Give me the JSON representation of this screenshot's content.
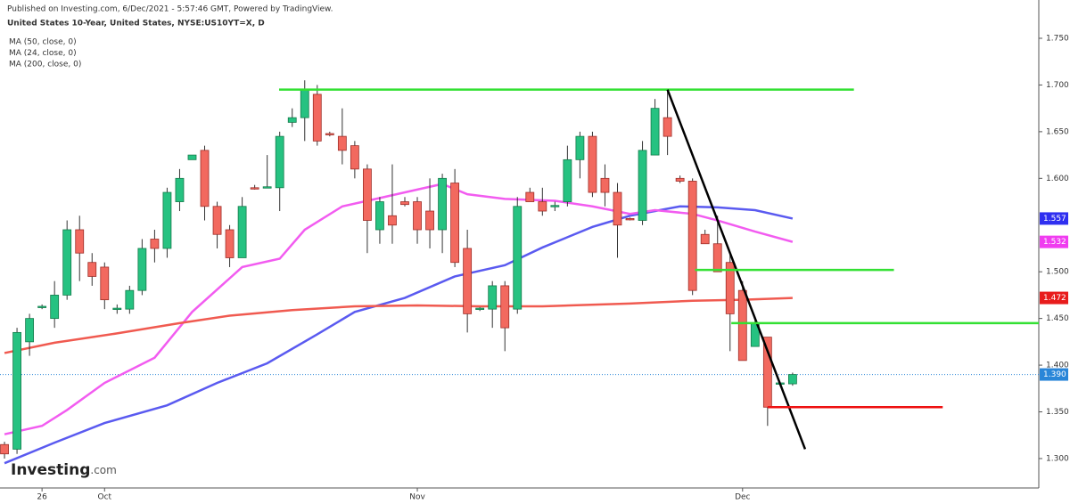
{
  "header": {
    "published": "Published on Investing.com, 6/Dec/2021 - 5:57:46 GMT, Powered by TradingView.",
    "logo": "Investing",
    "logo_suffix": ".com"
  },
  "chart_data": {
    "type": "candlestick",
    "title": "United States 10-Year, United States, NYSE:US10YT=X, D",
    "x": [
      0,
      1,
      2,
      3,
      4,
      5,
      6,
      7,
      8,
      9,
      10,
      11,
      12,
      13,
      14,
      15,
      16,
      17,
      18,
      19,
      20,
      21,
      22,
      23,
      24,
      25,
      26,
      27,
      28,
      29,
      30,
      31,
      32,
      33,
      34,
      35,
      36,
      37,
      38,
      39,
      40,
      41,
      42,
      43,
      44,
      45,
      46,
      47,
      48,
      49,
      50,
      51,
      52,
      53,
      54,
      55,
      56,
      57,
      58,
      59,
      60,
      61,
      62,
      63
    ],
    "open": [
      1.315,
      1.31,
      1.425,
      1.462,
      1.45,
      1.475,
      1.545,
      1.51,
      1.505,
      1.46,
      1.46,
      1.48,
      1.535,
      1.525,
      1.575,
      1.62,
      1.63,
      1.57,
      1.545,
      1.515,
      1.59,
      1.59,
      1.59,
      1.66,
      1.665,
      1.69,
      1.648,
      1.645,
      1.635,
      1.61,
      1.545,
      1.56,
      1.575,
      1.575,
      1.565,
      1.545,
      1.595,
      1.525,
      1.46,
      1.46,
      1.485,
      1.46,
      1.585,
      1.575,
      1.57,
      1.575,
      1.62,
      1.645,
      1.6,
      1.585,
      1.557,
      1.555,
      1.625,
      1.665,
      1.6,
      1.597,
      1.54,
      1.53,
      1.51,
      1.48,
      1.42,
      1.43,
      1.38,
      1.38
    ],
    "high": [
      1.318,
      1.44,
      1.455,
      1.465,
      1.49,
      1.555,
      1.56,
      1.52,
      1.51,
      1.465,
      1.485,
      1.535,
      1.545,
      1.59,
      1.61,
      1.625,
      1.635,
      1.575,
      1.55,
      1.58,
      1.593,
      1.625,
      1.65,
      1.675,
      1.705,
      1.7,
      1.65,
      1.675,
      1.64,
      1.615,
      1.58,
      1.615,
      1.58,
      1.58,
      1.6,
      1.605,
      1.61,
      1.545,
      1.462,
      1.49,
      1.49,
      1.58,
      1.59,
      1.59,
      1.575,
      1.635,
      1.65,
      1.65,
      1.615,
      1.595,
      1.558,
      1.64,
      1.685,
      1.695,
      1.603,
      1.6,
      1.545,
      1.56,
      1.52,
      1.49,
      1.45,
      1.43,
      1.382,
      1.392
    ],
    "low": [
      1.3,
      1.305,
      1.41,
      1.46,
      1.44,
      1.47,
      1.49,
      1.485,
      1.46,
      1.455,
      1.455,
      1.475,
      1.51,
      1.515,
      1.565,
      1.62,
      1.555,
      1.525,
      1.505,
      1.515,
      1.588,
      1.59,
      1.565,
      1.655,
      1.64,
      1.635,
      1.645,
      1.615,
      1.6,
      1.52,
      1.53,
      1.53,
      1.57,
      1.53,
      1.525,
      1.52,
      1.505,
      1.435,
      1.458,
      1.44,
      1.415,
      1.455,
      1.575,
      1.56,
      1.565,
      1.57,
      1.6,
      1.58,
      1.57,
      1.515,
      1.555,
      1.55,
      1.625,
      1.625,
      1.595,
      1.475,
      1.53,
      1.5,
      1.415,
      1.405,
      1.42,
      1.335,
      1.378,
      1.378
    ],
    "close": [
      1.305,
      1.435,
      1.45,
      1.463,
      1.475,
      1.545,
      1.52,
      1.495,
      1.47,
      1.461,
      1.48,
      1.525,
      1.525,
      1.585,
      1.6,
      1.625,
      1.57,
      1.54,
      1.515,
      1.57,
      1.589,
      1.591,
      1.645,
      1.665,
      1.695,
      1.64,
      1.647,
      1.63,
      1.61,
      1.555,
      1.575,
      1.55,
      1.572,
      1.545,
      1.545,
      1.6,
      1.51,
      1.455,
      1.461,
      1.485,
      1.44,
      1.57,
      1.575,
      1.565,
      1.571,
      1.62,
      1.645,
      1.585,
      1.585,
      1.55,
      1.556,
      1.63,
      1.675,
      1.645,
      1.597,
      1.48,
      1.53,
      1.5,
      1.455,
      1.405,
      1.445,
      1.355,
      1.381,
      1.39
    ],
    "up_color": "#26c281",
    "down_color": "#f2695f",
    "series": [
      {
        "name": "MA (50, close, 0)",
        "color": "#5a5af0",
        "x": [
          0,
          4,
          8,
          13,
          17,
          21,
          25,
          28,
          32,
          36,
          40,
          43,
          47,
          50,
          54,
          57,
          60,
          63
        ],
        "values": [
          1.295,
          1.317,
          1.338,
          1.357,
          1.381,
          1.402,
          1.433,
          1.457,
          1.472,
          1.495,
          1.507,
          1.526,
          1.548,
          1.56,
          1.57,
          1.569,
          1.566,
          1.557
        ]
      },
      {
        "name": "MA (24, close, 0)",
        "color": "#f25cf0",
        "x": [
          0,
          3,
          5,
          8,
          12,
          15,
          19,
          22,
          24,
          27,
          30,
          33,
          35,
          37,
          40,
          44,
          47,
          50,
          52,
          55,
          57,
          60,
          63
        ],
        "values": [
          1.326,
          1.335,
          1.352,
          1.381,
          1.408,
          1.457,
          1.505,
          1.514,
          1.545,
          1.57,
          1.579,
          1.588,
          1.594,
          1.583,
          1.578,
          1.576,
          1.57,
          1.562,
          1.566,
          1.562,
          1.555,
          1.543,
          1.532
        ]
      },
      {
        "name": "MA (200, close, 0)",
        "color": "#f05a50",
        "x": [
          0,
          4,
          9,
          14,
          18,
          23,
          28,
          33,
          38,
          43,
          50,
          55,
          59,
          63
        ],
        "values": [
          1.413,
          1.424,
          1.434,
          1.445,
          1.453,
          1.459,
          1.463,
          1.464,
          1.463,
          1.463,
          1.466,
          1.469,
          1.47,
          1.472
        ]
      }
    ],
    "drawings": [
      {
        "color": "#33e033",
        "x": [
          21.95,
          67.9
        ],
        "y": [
          1.695,
          1.695
        ]
      },
      {
        "color": "#000000",
        "x": [
          53,
          64
        ],
        "y": [
          1.695,
          1.31
        ]
      },
      {
        "color": "#33e033",
        "x": [
          55.2,
          71.1
        ],
        "y": [
          1.502,
          1.502
        ]
      },
      {
        "color": "#33e033",
        "x": [
          58.1,
          82.68
        ],
        "y": [
          1.445,
          1.445
        ]
      },
      {
        "color": "#ee1111",
        "x": [
          61,
          75
        ],
        "y": [
          1.355,
          1.355
        ]
      }
    ],
    "price_labels": [
      {
        "value": 1.557,
        "label": "1.557",
        "color": "#2f2ff0"
      },
      {
        "value": 1.532,
        "label": "1.532",
        "color": "#f03cf0"
      },
      {
        "value": 1.472,
        "label": "1.472",
        "color": "#e81c1c"
      },
      {
        "value": 1.39,
        "label": "1.390",
        "color": "#2a86d8"
      }
    ],
    "xlim": [
      -0.36,
      82.68
    ],
    "xticks": [
      {
        "value": 3,
        "label": "26"
      },
      {
        "value": 8,
        "label": "Oct"
      },
      {
        "value": 33,
        "label": "Nov"
      },
      {
        "value": 59,
        "label": "Dec"
      }
    ],
    "ylim": [
      1.2685,
      1.791
    ],
    "yticks": [
      {
        "value": 1.3,
        "label": "1.300"
      },
      {
        "value": 1.35,
        "label": "1.350"
      },
      {
        "value": 1.4,
        "label": "1.400"
      },
      {
        "value": 1.45,
        "label": "1.450"
      },
      {
        "value": 1.5,
        "label": "1.500"
      },
      {
        "value": 1.6,
        "label": "1.600"
      },
      {
        "value": 1.65,
        "label": "1.650"
      },
      {
        "value": 1.7,
        "label": "1.700"
      },
      {
        "value": 1.75,
        "label": "1.750"
      }
    ]
  }
}
